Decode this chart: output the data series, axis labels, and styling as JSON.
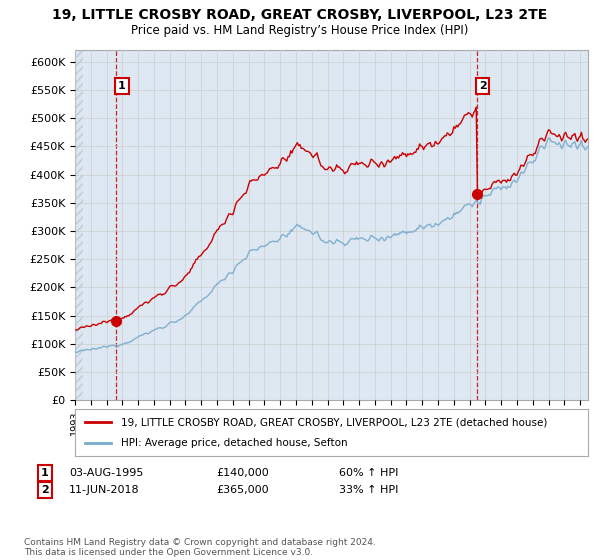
{
  "title": "19, LITTLE CROSBY ROAD, GREAT CROSBY, LIVERPOOL, L23 2TE",
  "subtitle": "Price paid vs. HM Land Registry’s House Price Index (HPI)",
  "ylabel_ticks": [
    "£0",
    "£50K",
    "£100K",
    "£150K",
    "£200K",
    "£250K",
    "£300K",
    "£350K",
    "£400K",
    "£450K",
    "£500K",
    "£550K",
    "£600K"
  ],
  "ytick_values": [
    0,
    50000,
    100000,
    150000,
    200000,
    250000,
    300000,
    350000,
    400000,
    450000,
    500000,
    550000,
    600000
  ],
  "ylim": [
    0,
    620000
  ],
  "sale1": {
    "date_num": 1995.58,
    "price": 140000,
    "label": "1"
  },
  "sale2": {
    "date_num": 2018.44,
    "price": 365000,
    "label": "2"
  },
  "red_line_color": "#cc0000",
  "blue_line_color": "#77aacc",
  "annotation_box_color": "#cc0000",
  "background_color": "#ffffff",
  "grid_color": "#cccccc",
  "legend_entry1": "19, LITTLE CROSBY ROAD, GREAT CROSBY, LIVERPOOL, L23 2TE (detached house)",
  "legend_entry2": "HPI: Average price, detached house, Sefton",
  "footnote": "Contains HM Land Registry data © Crown copyright and database right 2024.\nThis data is licensed under the Open Government Licence v3.0.",
  "xmin": 1993,
  "xmax": 2025.5
}
